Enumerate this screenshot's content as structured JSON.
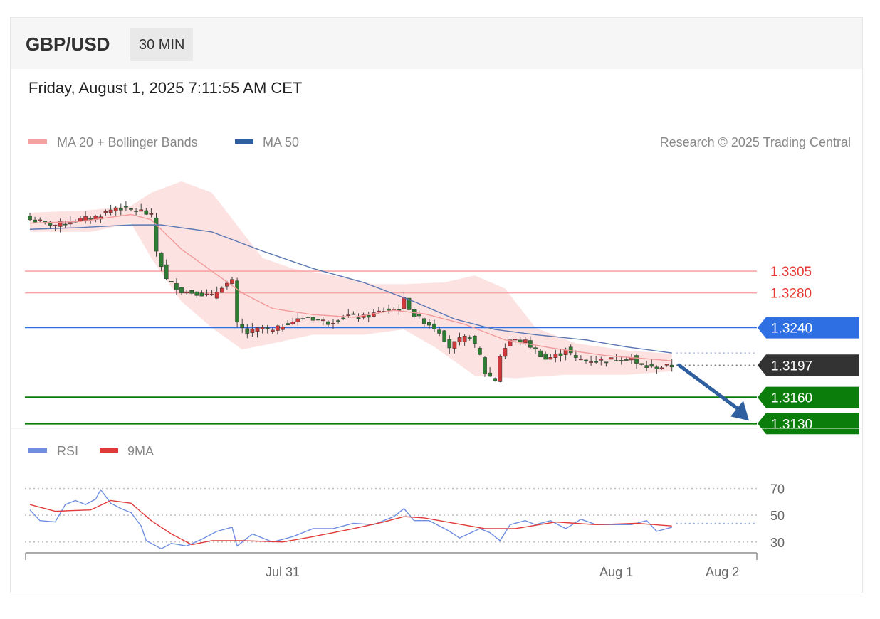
{
  "header": {
    "pair": "GBP/USD",
    "timeframe": "30 MIN",
    "datetime": "Friday, August 1, 2025 7:11:55 AM CET"
  },
  "legend": {
    "ma20_bb": "MA 20 + Bollinger Bands",
    "ma50": "MA 50",
    "credit": "Research © 2025 Trading Central"
  },
  "rsi_legend": {
    "rsi": "RSI",
    "ma9": "9MA"
  },
  "colors": {
    "up": "#d0383a",
    "down": "#2e7d32",
    "bb_fill": "#fde2e2",
    "ma20": "#f29a9a",
    "ma50": "#5b78b3",
    "resistance": "#f8a5a5",
    "pivot": "#2f6fe4",
    "support": "#0a7d0a",
    "last": "#333333",
    "arrow": "#2f5f9e",
    "rsi": "#6f8ee0",
    "rsi_ma": "#e03a3a"
  },
  "chart_data": [
    {
      "type": "candlestick",
      "y_range": [
        1.3118,
        1.3412
      ],
      "x_labels": [
        {
          "label": "Jul 31",
          "index": 50
        },
        {
          "label": "Aug 1",
          "index": 116
        },
        {
          "label": "Aug 2",
          "index": 137
        }
      ],
      "levels": [
        {
          "value": 1.3305,
          "label": "1.3305",
          "kind": "resistance"
        },
        {
          "value": 1.328,
          "label": "1.3280",
          "kind": "resistance"
        },
        {
          "value": 1.324,
          "label": "1.3240",
          "kind": "pivot"
        },
        {
          "value": 1.3197,
          "label": "1.3197",
          "kind": "last"
        },
        {
          "value": 1.316,
          "label": "1.3160",
          "kind": "support"
        },
        {
          "value": 1.313,
          "label": "1.3130",
          "kind": "support"
        }
      ],
      "forecast": {
        "from": 1.3197,
        "to": 1.313,
        "direction": "down"
      },
      "candle_anchors": [
        [
          0,
          1.3364
        ],
        [
          5,
          1.3358
        ],
        [
          8,
          1.3362
        ],
        [
          13,
          1.3367
        ],
        [
          17,
          1.3378
        ],
        [
          22,
          1.3374
        ],
        [
          24,
          1.3368
        ],
        [
          25,
          1.3328
        ],
        [
          27,
          1.3295
        ],
        [
          30,
          1.3282
        ],
        [
          33,
          1.328
        ],
        [
          36,
          1.3276
        ],
        [
          38,
          1.3288
        ],
        [
          40,
          1.3293
        ],
        [
          41,
          1.3244
        ],
        [
          43,
          1.3234
        ],
        [
          46,
          1.324
        ],
        [
          48,
          1.3236
        ],
        [
          51,
          1.3246
        ],
        [
          55,
          1.3252
        ],
        [
          59,
          1.3246
        ],
        [
          63,
          1.3254
        ],
        [
          66,
          1.3252
        ],
        [
          70,
          1.326
        ],
        [
          73,
          1.3262
        ],
        [
          74,
          1.3272
        ],
        [
          76,
          1.3254
        ],
        [
          79,
          1.3244
        ],
        [
          81,
          1.3236
        ],
        [
          83,
          1.3218
        ],
        [
          85,
          1.3226
        ],
        [
          87,
          1.323
        ],
        [
          89,
          1.3208
        ],
        [
          90,
          1.3188
        ],
        [
          92,
          1.318
        ],
        [
          93,
          1.3208
        ],
        [
          95,
          1.3226
        ],
        [
          98,
          1.3224
        ],
        [
          100,
          1.3214
        ],
        [
          102,
          1.3204
        ],
        [
          105,
          1.321
        ],
        [
          106,
          1.3216
        ],
        [
          108,
          1.3204
        ],
        [
          112,
          1.3202
        ],
        [
          116,
          1.3204
        ],
        [
          119,
          1.3206
        ],
        [
          120,
          1.3198
        ],
        [
          123,
          1.3194
        ],
        [
          127,
          1.3196
        ]
      ],
      "ma20_anchors": [
        [
          0,
          1.336
        ],
        [
          10,
          1.3362
        ],
        [
          20,
          1.337
        ],
        [
          24,
          1.3364
        ],
        [
          30,
          1.333
        ],
        [
          36,
          1.3305
        ],
        [
          42,
          1.328
        ],
        [
          48,
          1.3262
        ],
        [
          56,
          1.3255
        ],
        [
          64,
          1.3252
        ],
        [
          72,
          1.326
        ],
        [
          78,
          1.3256
        ],
        [
          86,
          1.3244
        ],
        [
          94,
          1.3226
        ],
        [
          104,
          1.3216
        ],
        [
          114,
          1.3208
        ],
        [
          127,
          1.3202
        ]
      ],
      "bb_upper_anchors": [
        [
          0,
          1.3372
        ],
        [
          12,
          1.3375
        ],
        [
          20,
          1.338
        ],
        [
          24,
          1.3395
        ],
        [
          30,
          1.3408
        ],
        [
          36,
          1.3395
        ],
        [
          40,
          1.3365
        ],
        [
          46,
          1.332
        ],
        [
          52,
          1.3308
        ],
        [
          60,
          1.33
        ],
        [
          68,
          1.329
        ],
        [
          74,
          1.329
        ],
        [
          82,
          1.3292
        ],
        [
          88,
          1.33
        ],
        [
          94,
          1.3285
        ],
        [
          100,
          1.324
        ],
        [
          108,
          1.3222
        ],
        [
          118,
          1.3214
        ],
        [
          127,
          1.321
        ]
      ],
      "bb_lower_anchors": [
        [
          0,
          1.335
        ],
        [
          12,
          1.335
        ],
        [
          20,
          1.336
        ],
        [
          24,
          1.332
        ],
        [
          30,
          1.327
        ],
        [
          36,
          1.324
        ],
        [
          42,
          1.3215
        ],
        [
          48,
          1.3222
        ],
        [
          56,
          1.3232
        ],
        [
          66,
          1.3232
        ],
        [
          74,
          1.3238
        ],
        [
          80,
          1.3218
        ],
        [
          88,
          1.3185
        ],
        [
          96,
          1.3182
        ],
        [
          106,
          1.3186
        ],
        [
          118,
          1.3186
        ],
        [
          127,
          1.319
        ]
      ],
      "ma50_anchors": [
        [
          0,
          1.3353
        ],
        [
          10,
          1.3355
        ],
        [
          20,
          1.3358
        ],
        [
          26,
          1.3358
        ],
        [
          36,
          1.335
        ],
        [
          46,
          1.3328
        ],
        [
          56,
          1.3308
        ],
        [
          66,
          1.3292
        ],
        [
          76,
          1.327
        ],
        [
          84,
          1.325
        ],
        [
          92,
          1.3238
        ],
        [
          100,
          1.3232
        ],
        [
          110,
          1.3226
        ],
        [
          118,
          1.3218
        ],
        [
          127,
          1.3211
        ]
      ]
    },
    {
      "type": "line",
      "name": "RSI",
      "y_range": [
        15,
        82
      ],
      "y_ticks": [
        70,
        50,
        30
      ],
      "rsi_anchors": [
        [
          0,
          54
        ],
        [
          2,
          46
        ],
        [
          5,
          45
        ],
        [
          7,
          58
        ],
        [
          9,
          61
        ],
        [
          11,
          58
        ],
        [
          13,
          62
        ],
        [
          14,
          69
        ],
        [
          16,
          59
        ],
        [
          18,
          55
        ],
        [
          20,
          52
        ],
        [
          22,
          42
        ],
        [
          23,
          31
        ],
        [
          26,
          25
        ],
        [
          28,
          29
        ],
        [
          31,
          27
        ],
        [
          34,
          32
        ],
        [
          37,
          38
        ],
        [
          40,
          41
        ],
        [
          41,
          27
        ],
        [
          44,
          36
        ],
        [
          48,
          30
        ],
        [
          52,
          34
        ],
        [
          56,
          40
        ],
        [
          60,
          40
        ],
        [
          64,
          44
        ],
        [
          68,
          43
        ],
        [
          72,
          49
        ],
        [
          74,
          55
        ],
        [
          76,
          46
        ],
        [
          79,
          46
        ],
        [
          81,
          42
        ],
        [
          83,
          38
        ],
        [
          85,
          33
        ],
        [
          89,
          40
        ],
        [
          91,
          37
        ],
        [
          93,
          31
        ],
        [
          95,
          43
        ],
        [
          98,
          46
        ],
        [
          100,
          43
        ],
        [
          103,
          46
        ],
        [
          106,
          40
        ],
        [
          109,
          47
        ],
        [
          112,
          43
        ],
        [
          116,
          43
        ],
        [
          119,
          43
        ],
        [
          122,
          46
        ],
        [
          124,
          38
        ],
        [
          127,
          41
        ]
      ],
      "rsi_ma_anchors": [
        [
          0,
          58
        ],
        [
          5,
          53
        ],
        [
          12,
          54
        ],
        [
          16,
          61
        ],
        [
          20,
          59
        ],
        [
          24,
          46
        ],
        [
          28,
          36
        ],
        [
          32,
          28
        ],
        [
          36,
          31
        ],
        [
          42,
          31
        ],
        [
          50,
          30
        ],
        [
          56,
          34
        ],
        [
          64,
          40
        ],
        [
          70,
          45
        ],
        [
          74,
          49
        ],
        [
          78,
          48
        ],
        [
          84,
          44
        ],
        [
          90,
          40
        ],
        [
          96,
          40
        ],
        [
          104,
          45
        ],
        [
          112,
          43
        ],
        [
          120,
          44
        ],
        [
          127,
          42
        ]
      ],
      "last_reference": 44
    }
  ]
}
